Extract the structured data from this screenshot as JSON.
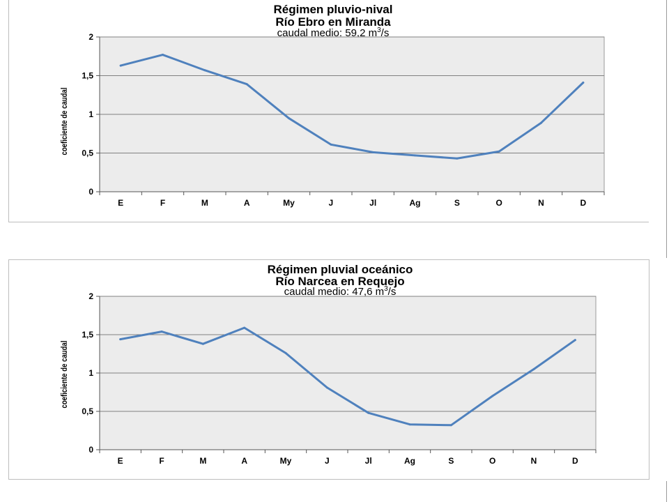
{
  "chart_data": [
    {
      "type": "line",
      "title": "Régimen pluvio-nival",
      "subtitle_line": "Río Ebro en Miranda",
      "caption": {
        "prefix": "caudal medio:  59,2 m",
        "sup": "3",
        "suffix": "/s"
      },
      "ylabel": "coeficiente de caudal",
      "ylim": [
        0,
        2
      ],
      "yticks": [
        "0",
        "0,5",
        "1",
        "1,5",
        "2"
      ],
      "categories": [
        "E",
        "F",
        "M",
        "A",
        "My",
        "J",
        "Jl",
        "Ag",
        "S",
        "O",
        "N",
        "D"
      ],
      "series": [
        {
          "values": [
            1.63,
            1.77,
            1.57,
            1.39,
            0.95,
            0.61,
            0.51,
            0.47,
            0.43,
            0.52,
            0.89,
            1.41
          ]
        }
      ],
      "grid": true,
      "colors": {
        "line": "#4f81bd",
        "plot_bg": "#ececec",
        "grid": "#808080"
      }
    },
    {
      "type": "line",
      "title": "Régimen pluvial oceánico",
      "subtitle_line": "Río Narcea en Requejo",
      "caption": {
        "prefix": "caudal medio:  47,6 m",
        "sup": "3",
        "suffix": "/s"
      },
      "ylabel": "coeficiente de caudal",
      "ylim": [
        0,
        2
      ],
      "yticks": [
        "0",
        "0,5",
        "1",
        "1,5",
        "2"
      ],
      "categories": [
        "E",
        "F",
        "M",
        "A",
        "My",
        "J",
        "Jl",
        "Ag",
        "S",
        "O",
        "N",
        "D"
      ],
      "series": [
        {
          "values": [
            1.44,
            1.54,
            1.38,
            1.59,
            1.26,
            0.81,
            0.48,
            0.33,
            0.32,
            0.7,
            1.05,
            1.43
          ]
        }
      ],
      "grid": true,
      "colors": {
        "line": "#4f81bd",
        "plot_bg": "#ececec",
        "grid": "#808080"
      }
    }
  ]
}
